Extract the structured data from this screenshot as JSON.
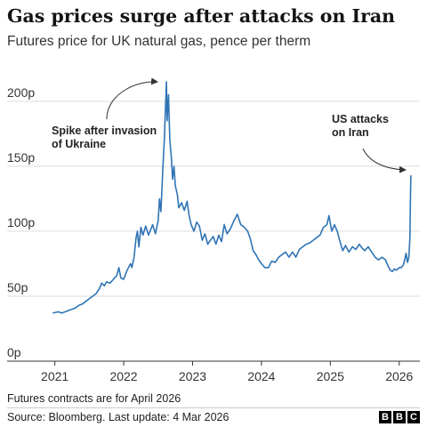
{
  "chart_data": {
    "type": "line",
    "title": "Gas prices surge after attacks on Iran",
    "subtitle": "Futures price for UK natural gas, pence per therm",
    "xlabel": "",
    "ylabel": "",
    "xlim": [
      2020.85,
      2026.3
    ],
    "ylim": [
      0,
      230
    ],
    "grid": true,
    "y_ticks": [
      {
        "value": 0,
        "label": "0p"
      },
      {
        "value": 50,
        "label": "50p"
      },
      {
        "value": 100,
        "label": "100p"
      },
      {
        "value": 150,
        "label": "150p"
      },
      {
        "value": 200,
        "label": "200p"
      }
    ],
    "x_ticks": [
      {
        "value": 2021,
        "label": "2021"
      },
      {
        "value": 2022,
        "label": "2022"
      },
      {
        "value": 2023,
        "label": "2023"
      },
      {
        "value": 2024,
        "label": "2024"
      },
      {
        "value": 2025,
        "label": "2025"
      },
      {
        "value": 2026,
        "label": "2026"
      }
    ],
    "series": [
      {
        "color": "#2f74b5",
        "points": [
          [
            2020.97,
            37
          ],
          [
            2021.05,
            38
          ],
          [
            2021.1,
            37
          ],
          [
            2021.15,
            38
          ],
          [
            2021.2,
            39
          ],
          [
            2021.25,
            40
          ],
          [
            2021.3,
            41
          ],
          [
            2021.35,
            43
          ],
          [
            2021.4,
            44
          ],
          [
            2021.45,
            46
          ],
          [
            2021.5,
            48
          ],
          [
            2021.55,
            50
          ],
          [
            2021.6,
            52
          ],
          [
            2021.65,
            56
          ],
          [
            2021.68,
            60
          ],
          [
            2021.72,
            58
          ],
          [
            2021.75,
            61
          ],
          [
            2021.8,
            60
          ],
          [
            2021.85,
            63
          ],
          [
            2021.9,
            66
          ],
          [
            2021.93,
            72
          ],
          [
            2021.96,
            64
          ],
          [
            2022.0,
            63
          ],
          [
            2022.05,
            70
          ],
          [
            2022.1,
            75
          ],
          [
            2022.12,
            72
          ],
          [
            2022.15,
            80
          ],
          [
            2022.18,
            95
          ],
          [
            2022.2,
            100
          ],
          [
            2022.22,
            88
          ],
          [
            2022.25,
            103
          ],
          [
            2022.28,
            97
          ],
          [
            2022.32,
            104
          ],
          [
            2022.36,
            97
          ],
          [
            2022.42,
            105
          ],
          [
            2022.46,
            98
          ],
          [
            2022.5,
            108
          ],
          [
            2022.52,
            125
          ],
          [
            2022.54,
            115
          ],
          [
            2022.57,
            150
          ],
          [
            2022.59,
            170
          ],
          [
            2022.6,
            185
          ],
          [
            2022.62,
            215
          ],
          [
            2022.63,
            185
          ],
          [
            2022.65,
            205
          ],
          [
            2022.67,
            170
          ],
          [
            2022.69,
            158
          ],
          [
            2022.71,
            140
          ],
          [
            2022.73,
            150
          ],
          [
            2022.75,
            135
          ],
          [
            2022.78,
            128
          ],
          [
            2022.8,
            118
          ],
          [
            2022.84,
            122
          ],
          [
            2022.88,
            116
          ],
          [
            2022.92,
            123
          ],
          [
            2022.95,
            112
          ],
          [
            2022.98,
            105
          ],
          [
            2023.02,
            100
          ],
          [
            2023.06,
            107
          ],
          [
            2023.1,
            104
          ],
          [
            2023.14,
            93
          ],
          [
            2023.18,
            98
          ],
          [
            2023.22,
            90
          ],
          [
            2023.26,
            93
          ],
          [
            2023.3,
            96
          ],
          [
            2023.34,
            90
          ],
          [
            2023.38,
            97
          ],
          [
            2023.42,
            92
          ],
          [
            2023.46,
            105
          ],
          [
            2023.5,
            98
          ],
          [
            2023.55,
            102
          ],
          [
            2023.6,
            108
          ],
          [
            2023.65,
            113
          ],
          [
            2023.7,
            105
          ],
          [
            2023.75,
            103
          ],
          [
            2023.8,
            100
          ],
          [
            2023.84,
            94
          ],
          [
            2023.88,
            85
          ],
          [
            2023.92,
            82
          ],
          [
            2023.96,
            78
          ],
          [
            2024.0,
            75
          ],
          [
            2024.05,
            72
          ],
          [
            2024.1,
            72
          ],
          [
            2024.15,
            77
          ],
          [
            2024.2,
            76
          ],
          [
            2024.25,
            80
          ],
          [
            2024.3,
            82
          ],
          [
            2024.35,
            84
          ],
          [
            2024.4,
            80
          ],
          [
            2024.45,
            84
          ],
          [
            2024.5,
            80
          ],
          [
            2024.55,
            86
          ],
          [
            2024.6,
            88
          ],
          [
            2024.65,
            90
          ],
          [
            2024.7,
            91
          ],
          [
            2024.75,
            93
          ],
          [
            2024.8,
            95
          ],
          [
            2024.85,
            97
          ],
          [
            2024.9,
            103
          ],
          [
            2024.95,
            105
          ],
          [
            2024.98,
            112
          ],
          [
            2025.02,
            100
          ],
          [
            2025.06,
            105
          ],
          [
            2025.1,
            100
          ],
          [
            2025.14,
            92
          ],
          [
            2025.18,
            85
          ],
          [
            2025.22,
            89
          ],
          [
            2025.27,
            84
          ],
          [
            2025.32,
            88
          ],
          [
            2025.37,
            86
          ],
          [
            2025.42,
            90
          ],
          [
            2025.46,
            87
          ],
          [
            2025.5,
            85
          ],
          [
            2025.55,
            88
          ],
          [
            2025.6,
            84
          ],
          [
            2025.65,
            80
          ],
          [
            2025.7,
            78
          ],
          [
            2025.75,
            80
          ],
          [
            2025.8,
            78
          ],
          [
            2025.84,
            73
          ],
          [
            2025.87,
            70
          ],
          [
            2025.9,
            69
          ],
          [
            2025.93,
            71
          ],
          [
            2025.96,
            70
          ],
          [
            2026.0,
            72
          ],
          [
            2026.03,
            72
          ],
          [
            2026.06,
            74
          ],
          [
            2026.08,
            78
          ],
          [
            2026.1,
            83
          ],
          [
            2026.12,
            76
          ],
          [
            2026.14,
            80
          ],
          [
            2026.155,
            95
          ],
          [
            2026.165,
            130
          ],
          [
            2026.17,
            143
          ]
        ]
      }
    ],
    "annotations": [
      {
        "lines": [
          "Spike after invasion",
          "of Ukraine"
        ]
      },
      {
        "lines": [
          "US attacks",
          "on Iran"
        ]
      }
    ]
  },
  "footnote": "Futures contracts are for April 2026",
  "source": "Source: Bloomberg. Last update: 4 Mar 2026",
  "logo": {
    "letters": [
      "B",
      "B",
      "C"
    ]
  }
}
